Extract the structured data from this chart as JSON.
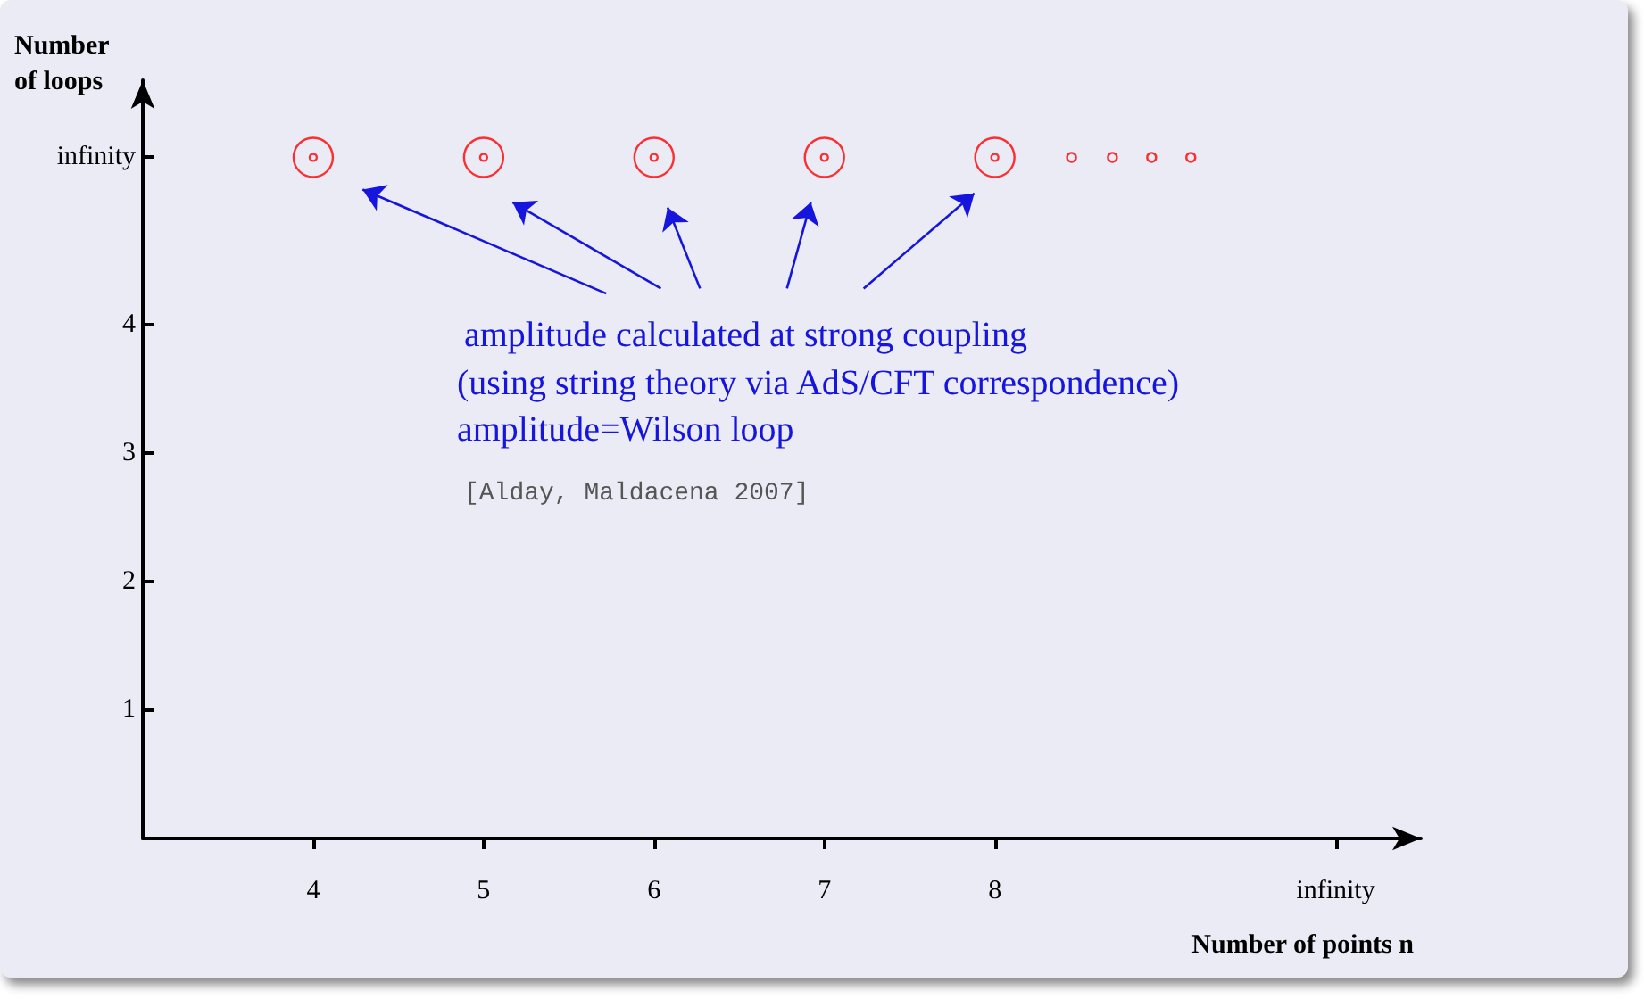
{
  "chart_data": {
    "type": "scatter",
    "xlabel": "Number of points n",
    "ylabel": "Number of loops",
    "x": [
      4,
      5,
      6,
      7,
      8
    ],
    "series": [
      {
        "color": "#ff0000",
        "values": [
          5.3,
          5.3,
          5.3,
          5.3,
          5.3
        ]
      },
      {
        "color": "#ff0000",
        "x": [
          8.45,
          8.69,
          8.92,
          9.15
        ],
        "values": [
          5.3,
          5.3,
          5.3,
          5.3
        ]
      }
    ],
    "xlim": [
      3,
      10.5
    ],
    "ylim": [
      0,
      5.9
    ],
    "xticks": [
      4,
      5,
      6,
      7,
      8,
      {
        "value": 10,
        "label": "infinity"
      }
    ],
    "yticks": [
      1,
      2,
      3,
      4,
      {
        "value": 5.3,
        "label": "infinity"
      }
    ],
    "marker": "circle",
    "grid": false,
    "annotations": [
      "amplitude calculated at strong coupling",
      "(using string theory via AdS/CFT correspondence)",
      "amplitude=Wilson loop",
      "[Alday, Maldacena 2007]"
    ]
  }
}
